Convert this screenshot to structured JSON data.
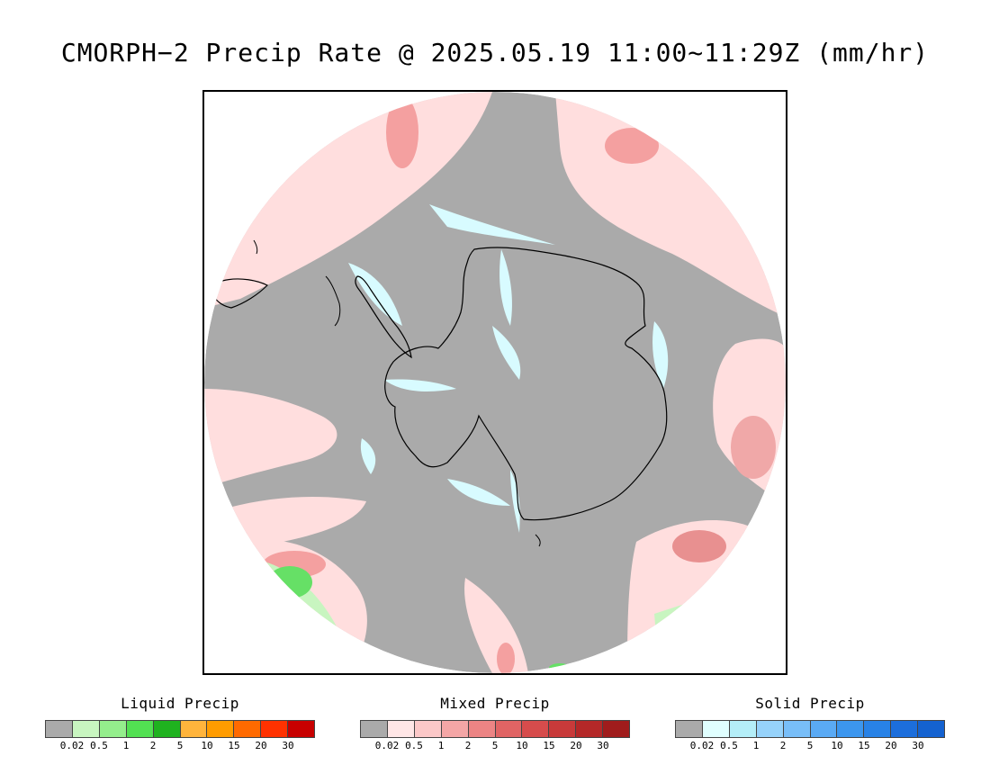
{
  "title": "CMORPH−2 Precip Rate @ 2025.05.19 11:00~11:29Z (mm/hr)",
  "colors": {
    "background": "#aaaaaa",
    "ocean_mixed_light": "#ffdede",
    "mixed_mid": "#f4a0a0",
    "mixed_strong": "#e07070",
    "solid_light": "#d8fbff",
    "liquid_light": "#c8f5c0",
    "liquid_mid": "#66e066",
    "coast": "#000000"
  },
  "legends": [
    {
      "title": "Liquid Precip",
      "colors": [
        "#aaaaaa",
        "#c8f5c0",
        "#94ee8c",
        "#52e052",
        "#1fb21f",
        "#ffb43c",
        "#ff9c00",
        "#ff6a00",
        "#ff3200",
        "#c80000"
      ],
      "ticks": [
        "0.02",
        "0.5",
        "1",
        "2",
        "5",
        "10",
        "15",
        "20",
        "30"
      ]
    },
    {
      "title": "Mixed Precip",
      "colors": [
        "#aaaaaa",
        "#ffe6e6",
        "#fcc8c8",
        "#f4a6a6",
        "#ec8484",
        "#e06464",
        "#d64c4c",
        "#c83a3a",
        "#b42828",
        "#a01c1c"
      ],
      "ticks": [
        "0.02",
        "0.5",
        "1",
        "2",
        "5",
        "10",
        "15",
        "20",
        "30"
      ]
    },
    {
      "title": "Solid Precip",
      "colors": [
        "#aaaaaa",
        "#e0ffff",
        "#b4eef8",
        "#96d2fa",
        "#78bef8",
        "#5aaaf4",
        "#3c96ee",
        "#2882e6",
        "#1c6edc",
        "#1462d0"
      ],
      "ticks": [
        "0.02",
        "0.5",
        "1",
        "2",
        "5",
        "10",
        "15",
        "20",
        "30"
      ]
    }
  ]
}
